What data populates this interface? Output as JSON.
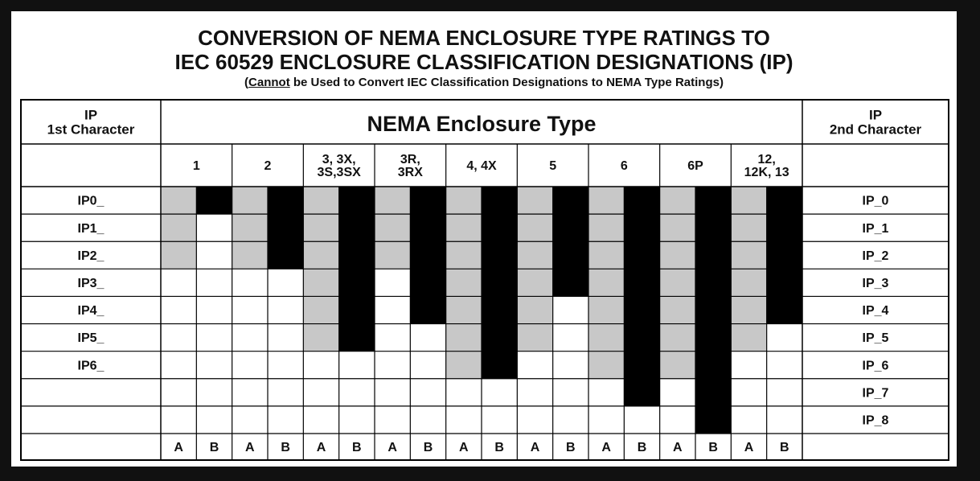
{
  "title_line1": "CONVERSION OF NEMA ENCLOSURE TYPE RATINGS TO",
  "title_line2": "IEC 60529 ENCLOSURE CLASSIFICATION DESIGNATIONS (IP)",
  "subtitle_prefix": "(",
  "subtitle_emphasis": "Cannot",
  "subtitle_rest": " be Used to Convert IEC Classification Designations to NEMA Type Ratings)",
  "table": {
    "left_header": [
      "IP",
      "1st Character"
    ],
    "center_header": "NEMA Enclosure Type",
    "right_header": [
      "IP",
      "2nd Character"
    ],
    "nema_types": [
      {
        "label": [
          "1"
        ],
        "a_max_first_digit": 2,
        "b_max_second_digit": 0
      },
      {
        "label": [
          "2"
        ],
        "a_max_first_digit": 2,
        "b_max_second_digit": 2
      },
      {
        "label": [
          "3, 3X,",
          "3S,3SX"
        ],
        "a_max_first_digit": 5,
        "b_max_second_digit": 5
      },
      {
        "label": [
          "3R,",
          "3RX"
        ],
        "a_max_first_digit": 2,
        "b_max_second_digit": 4
      },
      {
        "label": [
          "4, 4X"
        ],
        "a_max_first_digit": 6,
        "b_max_second_digit": 6
      },
      {
        "label": [
          "5"
        ],
        "a_max_first_digit": 5,
        "b_max_second_digit": 3
      },
      {
        "label": [
          "6"
        ],
        "a_max_first_digit": 6,
        "b_max_second_digit": 7
      },
      {
        "label": [
          "6P"
        ],
        "a_max_first_digit": 6,
        "b_max_second_digit": 8
      },
      {
        "label": [
          "12,",
          "12K, 13"
        ],
        "a_max_first_digit": 5,
        "b_max_second_digit": 4
      }
    ],
    "first_character_codes": [
      "IP0_",
      "IP1_",
      "IP2_",
      "IP3_",
      "IP4_",
      "IP5_",
      "IP6_",
      "",
      ""
    ],
    "second_character_codes": [
      "IP_0",
      "IP_1",
      "IP_2",
      "IP_3",
      "IP_4",
      "IP_5",
      "IP_6",
      "IP_7",
      "IP_8"
    ],
    "column_letters": [
      "A",
      "B"
    ],
    "colors": {
      "a_fill": "#c8c8c8",
      "b_fill": "#000000",
      "grid": "#000000"
    }
  }
}
